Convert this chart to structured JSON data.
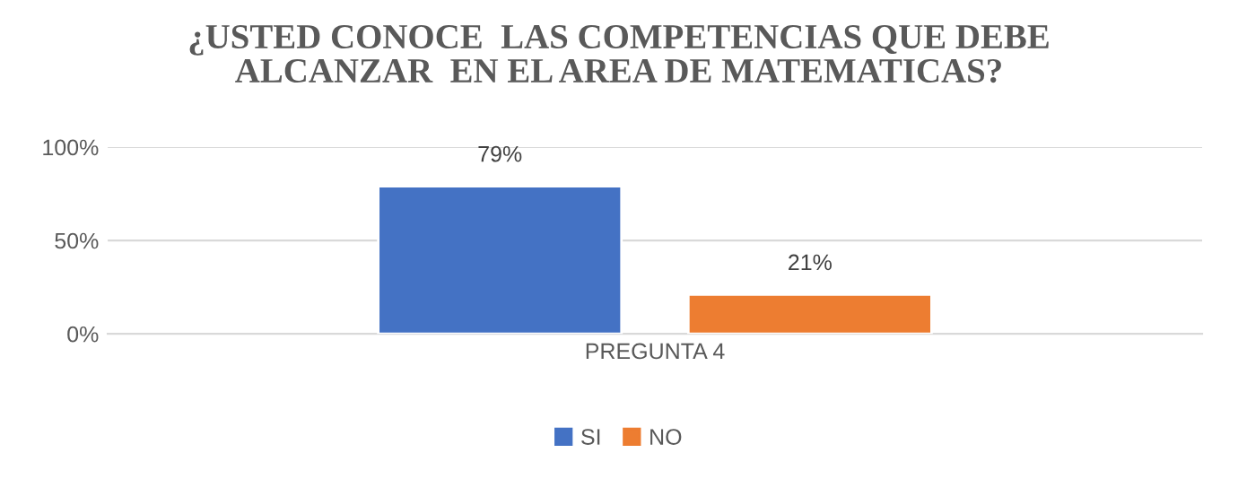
{
  "chart_data": {
    "type": "bar",
    "title": "¿USTED CONOCE  LAS COMPETENCIAS QUE DEBE\nALCANZAR  EN EL AREA DE MATEMATICAS?",
    "categories": [
      "PREGUNTA 4"
    ],
    "series": [
      {
        "name": "SI",
        "color": "#4472c4",
        "values": [
          79
        ],
        "value_labels": [
          "79%"
        ]
      },
      {
        "name": "NO",
        "color": "#ed7d31",
        "values": [
          21
        ],
        "value_labels": [
          "21%"
        ]
      }
    ],
    "ylim": [
      0,
      100
    ],
    "yticks": [
      {
        "value": 0,
        "label": "0%"
      },
      {
        "value": 50,
        "label": "50%"
      },
      {
        "value": 100,
        "label": "100%"
      }
    ],
    "grid": "y",
    "legend": "bottom"
  }
}
